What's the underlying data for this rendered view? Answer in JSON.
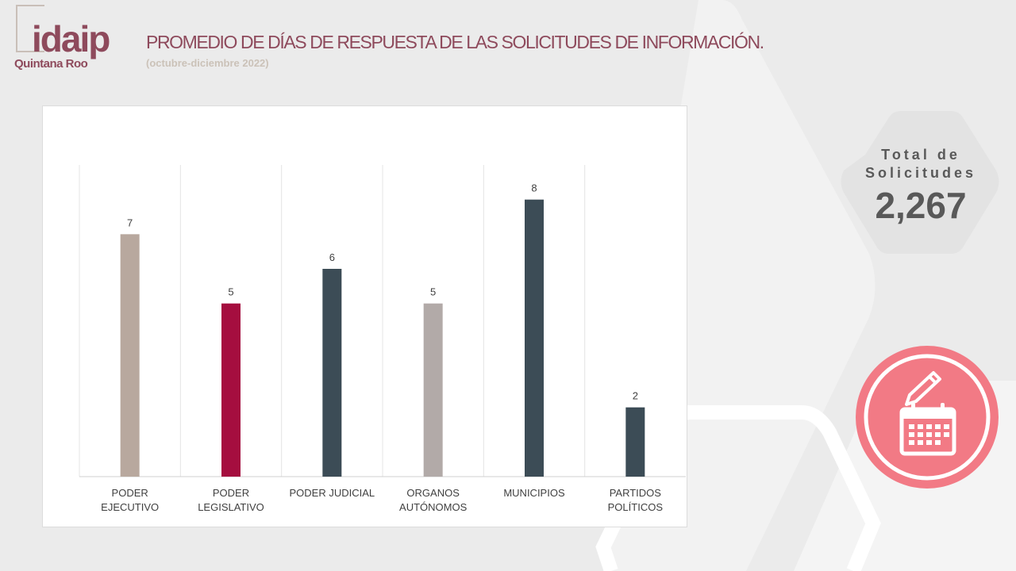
{
  "header": {
    "logo_word": "idaip",
    "logo_sub": "Quintana Roo",
    "title": "PROMEDIO DE DÍAS DE RESPUESTA DE LAS SOLICITUDES DE INFORMACIÓN.",
    "subtitle": "(octubre-diciembre 2022)"
  },
  "total": {
    "label_line1": "Total de",
    "label_line2": "Solicitudes",
    "value": "2,267"
  },
  "colors": {
    "title": "#8e4a5c",
    "icon_circle": "#f27a85",
    "panel_bg": "#ebebeb"
  },
  "icons": [
    "calendar-pencil-icon"
  ],
  "chart_data": {
    "type": "bar",
    "categories": [
      [
        "PODER",
        "EJECUTIVO"
      ],
      [
        "PODER",
        "LEGISLATIVO"
      ],
      [
        "PODER JUDICIAL"
      ],
      [
        "ORGANOS",
        "AUTÓNOMOS"
      ],
      [
        "MUNICIPIOS"
      ],
      [
        "PARTIDOS",
        "POLÍTICOS"
      ]
    ],
    "values": [
      7,
      5,
      6,
      5,
      8,
      2
    ],
    "data_labels": [
      "7",
      "5",
      "6",
      "5",
      "8",
      "2"
    ],
    "bar_colors": [
      "#b8a89e",
      "#a50e3f",
      "#3c4c56",
      "#b2aaa8",
      "#3c4c56",
      "#3c4c56"
    ],
    "ylim": [
      0,
      9
    ],
    "grid": "vertical"
  }
}
